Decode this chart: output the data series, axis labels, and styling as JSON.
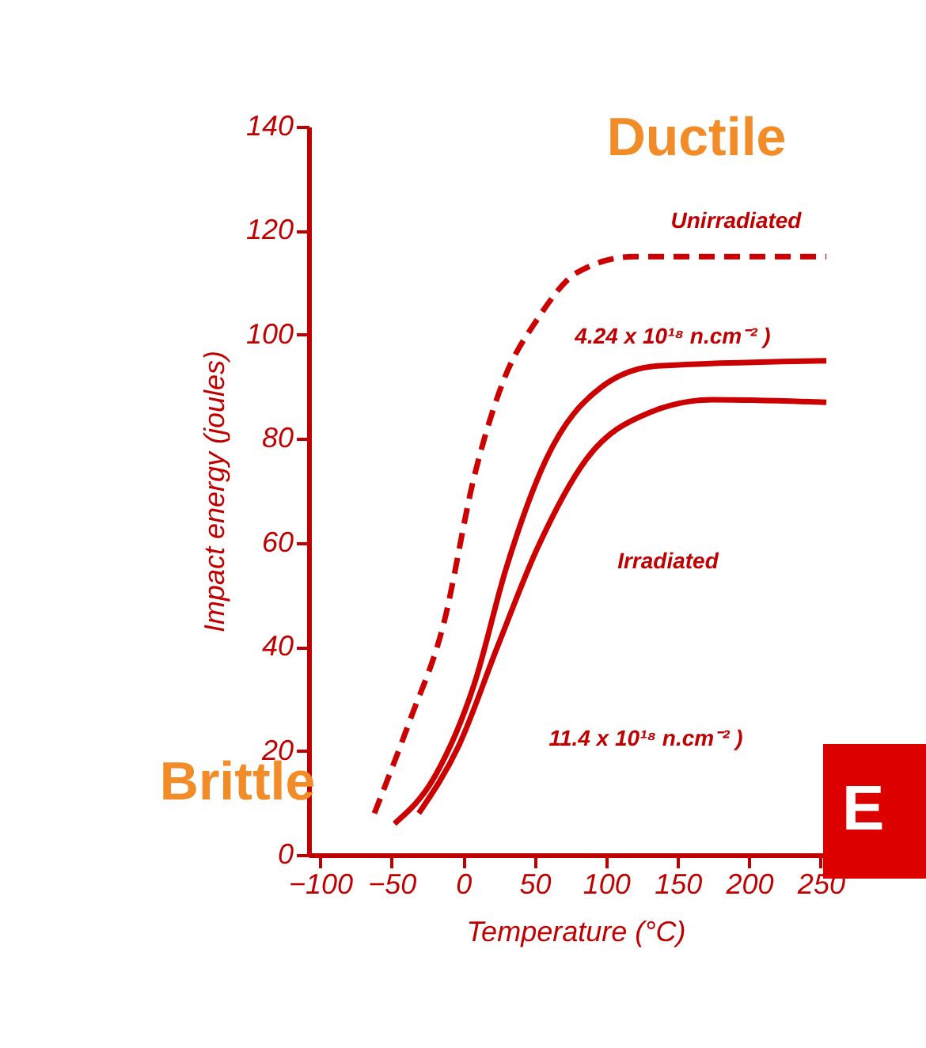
{
  "chart_data": {
    "type": "line",
    "xlabel": "Temperature (°C)",
    "ylabel": "Impact energy (joules)",
    "xlim": [
      -108,
      265
    ],
    "xticks": [
      -100,
      -50,
      0,
      50,
      100,
      150,
      200,
      250
    ],
    "ylim": [
      0,
      140
    ],
    "yticks": [
      0,
      20,
      40,
      60,
      80,
      100,
      120,
      140
    ],
    "grid": false,
    "marker": "none",
    "series": [
      {
        "color": "#cc0000",
        "line_style": "dashed",
        "x": [
          -62,
          -37,
          -14,
          8,
          28,
          52,
          80,
          119,
          254
        ],
        "values": [
          8,
          26,
          44,
          73,
          91,
          103,
          112,
          115,
          115
        ]
      },
      {
        "color": "#cc0000",
        "line_style": "solid",
        "x": [
          -48,
          -20,
          8,
          30,
          58,
          97,
          136,
          254
        ],
        "values": [
          6,
          15,
          33,
          55,
          76,
          90,
          94,
          95
        ]
      },
      {
        "color": "#cc0000",
        "line_style": "solid",
        "x": [
          -31,
          -3,
          24,
          52,
          86,
          130,
          174,
          254
        ],
        "values": [
          8,
          21,
          40,
          59,
          76,
          85,
          87.5,
          87
        ]
      }
    ],
    "annotations": [
      "Unirradiated",
      "4.24 x 10¹⁸ n.cm⁻² )",
      "Irradiated",
      "11.4 x 10¹⁸ n.cm⁻² )",
      "Ductile",
      "Brittle",
      "E"
    ]
  }
}
